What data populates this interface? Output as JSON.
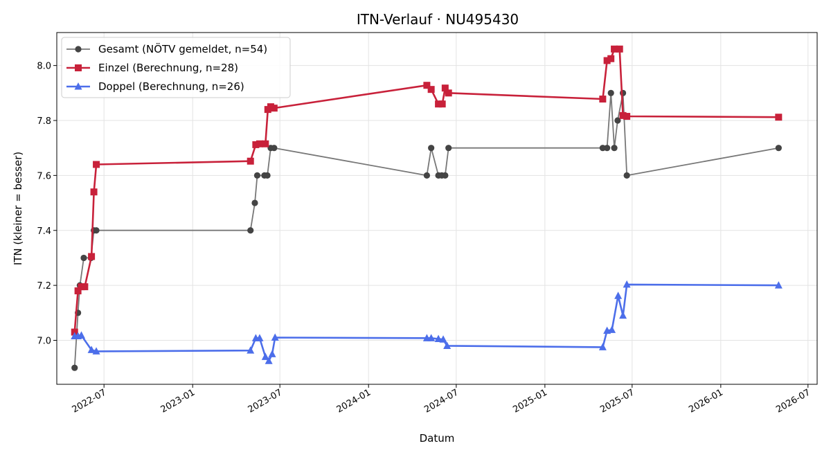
{
  "chart_data": {
    "type": "line",
    "title": "ITN-Verlauf · NU495430",
    "xlabel": "Datum",
    "ylabel": "ITN  (kleiner = besser)",
    "x_axis_type": "date",
    "xlim": [
      "2022-03-25",
      "2026-07-20"
    ],
    "ylim": [
      6.84,
      8.12
    ],
    "x_ticks": [
      "2022-07-01",
      "2023-01-01",
      "2023-07-01",
      "2024-01-01",
      "2024-07-01",
      "2025-01-01",
      "2025-07-01",
      "2026-01-01",
      "2026-07-01"
    ],
    "x_tick_labels": [
      "2022-07",
      "2023-01",
      "2023-07",
      "2024-01",
      "2024-07",
      "2025-01",
      "2025-07",
      "2026-01",
      "2026-07"
    ],
    "y_ticks": [
      7.0,
      7.2,
      7.4,
      7.6,
      7.8,
      8.0
    ],
    "y_tick_labels": [
      "7.0",
      "7.2",
      "7.4",
      "7.6",
      "7.8",
      "8.0"
    ],
    "grid": true,
    "legend_position": "top-left",
    "series": [
      {
        "name": "Gesamt (NÖTV gemeldet, n=54)",
        "color": "#444444",
        "line_color": "#777777",
        "marker": "circle",
        "points": [
          [
            "2022-05-01",
            6.9
          ],
          [
            "2022-05-08",
            7.1
          ],
          [
            "2022-05-12",
            7.2
          ],
          [
            "2022-05-20",
            7.3
          ],
          [
            "2022-06-04",
            7.3
          ],
          [
            "2022-06-10",
            7.4
          ],
          [
            "2022-06-15",
            7.4
          ],
          [
            "2023-05-01",
            7.4
          ],
          [
            "2023-05-10",
            7.5
          ],
          [
            "2023-05-15",
            7.6
          ],
          [
            "2023-05-30",
            7.6
          ],
          [
            "2023-06-05",
            7.6
          ],
          [
            "2023-06-12",
            7.7
          ],
          [
            "2023-06-19",
            7.7
          ],
          [
            "2024-05-01",
            7.6
          ],
          [
            "2024-05-10",
            7.7
          ],
          [
            "2024-05-25",
            7.6
          ],
          [
            "2024-06-01",
            7.6
          ],
          [
            "2024-06-08",
            7.6
          ],
          [
            "2024-06-15",
            7.7
          ],
          [
            "2025-05-01",
            7.7
          ],
          [
            "2025-05-10",
            7.7
          ],
          [
            "2025-05-18",
            7.9
          ],
          [
            "2025-05-25",
            7.7
          ],
          [
            "2025-06-01",
            7.8
          ],
          [
            "2025-06-12",
            7.9
          ],
          [
            "2025-06-20",
            7.6
          ],
          [
            "2026-05-01",
            7.7
          ]
        ]
      },
      {
        "name": "Einzel (Berechnung, n=28)",
        "color": "#c8213a",
        "marker": "square",
        "points": [
          [
            "2022-05-01",
            7.03
          ],
          [
            "2022-05-08",
            7.18
          ],
          [
            "2022-05-15",
            7.195
          ],
          [
            "2022-05-22",
            7.195
          ],
          [
            "2022-06-05",
            7.305
          ],
          [
            "2022-06-10",
            7.54
          ],
          [
            "2022-06-15",
            7.64
          ],
          [
            "2023-05-01",
            7.652
          ],
          [
            "2023-05-12",
            7.712
          ],
          [
            "2023-05-20",
            7.715
          ],
          [
            "2023-06-01",
            7.715
          ],
          [
            "2023-06-06",
            7.84
          ],
          [
            "2023-06-12",
            7.85
          ],
          [
            "2023-06-19",
            7.845
          ],
          [
            "2024-05-01",
            7.928
          ],
          [
            "2024-05-10",
            7.913
          ],
          [
            "2024-05-25",
            7.86
          ],
          [
            "2024-06-02",
            7.86
          ],
          [
            "2024-06-08",
            7.918
          ],
          [
            "2024-06-15",
            7.9
          ],
          [
            "2025-05-01",
            7.878
          ],
          [
            "2025-05-10",
            8.018
          ],
          [
            "2025-05-18",
            8.025
          ],
          [
            "2025-05-25",
            8.06
          ],
          [
            "2025-06-05",
            8.06
          ],
          [
            "2025-06-12",
            7.818
          ],
          [
            "2025-06-20",
            7.815
          ],
          [
            "2026-05-01",
            7.812
          ]
        ]
      },
      {
        "name": "Doppel (Berechnung, n=26)",
        "color": "#4c6eea",
        "marker": "triangle",
        "points": [
          [
            "2022-05-01",
            7.015
          ],
          [
            "2022-05-08",
            7.015
          ],
          [
            "2022-05-15",
            7.018
          ],
          [
            "2022-06-05",
            6.965
          ],
          [
            "2022-06-15",
            6.96
          ],
          [
            "2023-05-01",
            6.963
          ],
          [
            "2023-05-12",
            7.008
          ],
          [
            "2023-05-20",
            7.008
          ],
          [
            "2023-06-01",
            6.94
          ],
          [
            "2023-06-08",
            6.925
          ],
          [
            "2023-06-15",
            6.95
          ],
          [
            "2023-06-21",
            7.01
          ],
          [
            "2024-05-01",
            7.008
          ],
          [
            "2024-05-10",
            7.008
          ],
          [
            "2024-05-25",
            7.005
          ],
          [
            "2024-06-04",
            7.003
          ],
          [
            "2024-06-12",
            6.98
          ],
          [
            "2025-05-01",
            6.975
          ],
          [
            "2025-05-10",
            7.035
          ],
          [
            "2025-05-20",
            7.038
          ],
          [
            "2025-06-02",
            7.162
          ],
          [
            "2025-06-12",
            7.09
          ],
          [
            "2025-06-20",
            7.203
          ],
          [
            "2026-05-01",
            7.2
          ]
        ]
      }
    ]
  }
}
